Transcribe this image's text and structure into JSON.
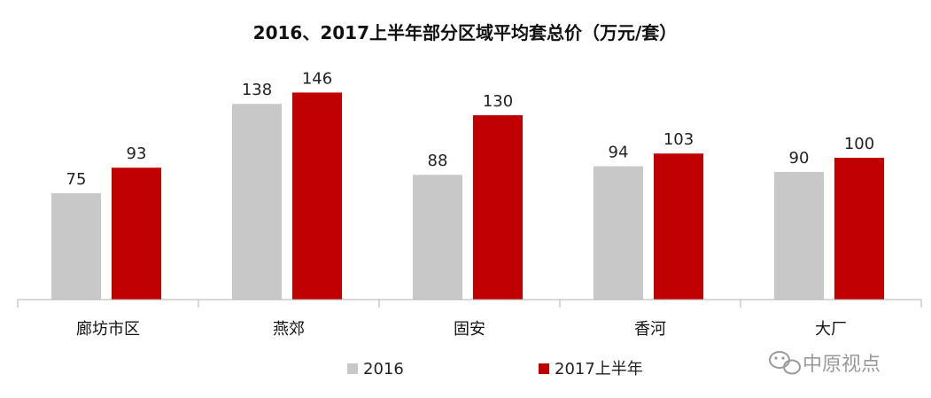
{
  "chart_data": {
    "type": "bar",
    "title": "2016、2017上半年部分区域平均套总价（万元/套）",
    "categories": [
      "廊坊市区",
      "燕郊",
      "固安",
      "香河",
      "大厂"
    ],
    "series": [
      {
        "name": "2016",
        "values": [
          75,
          138,
          88,
          94,
          90
        ],
        "color": "#c8c8c8"
      },
      {
        "name": "2017上半年",
        "values": [
          93,
          146,
          130,
          103,
          100
        ],
        "color": "#c00000"
      }
    ],
    "ylim": [
      0,
      160
    ],
    "grid": false,
    "legend": "bottom-center"
  },
  "watermark": {
    "text": "中原视点",
    "icon": "wechat-icon"
  }
}
